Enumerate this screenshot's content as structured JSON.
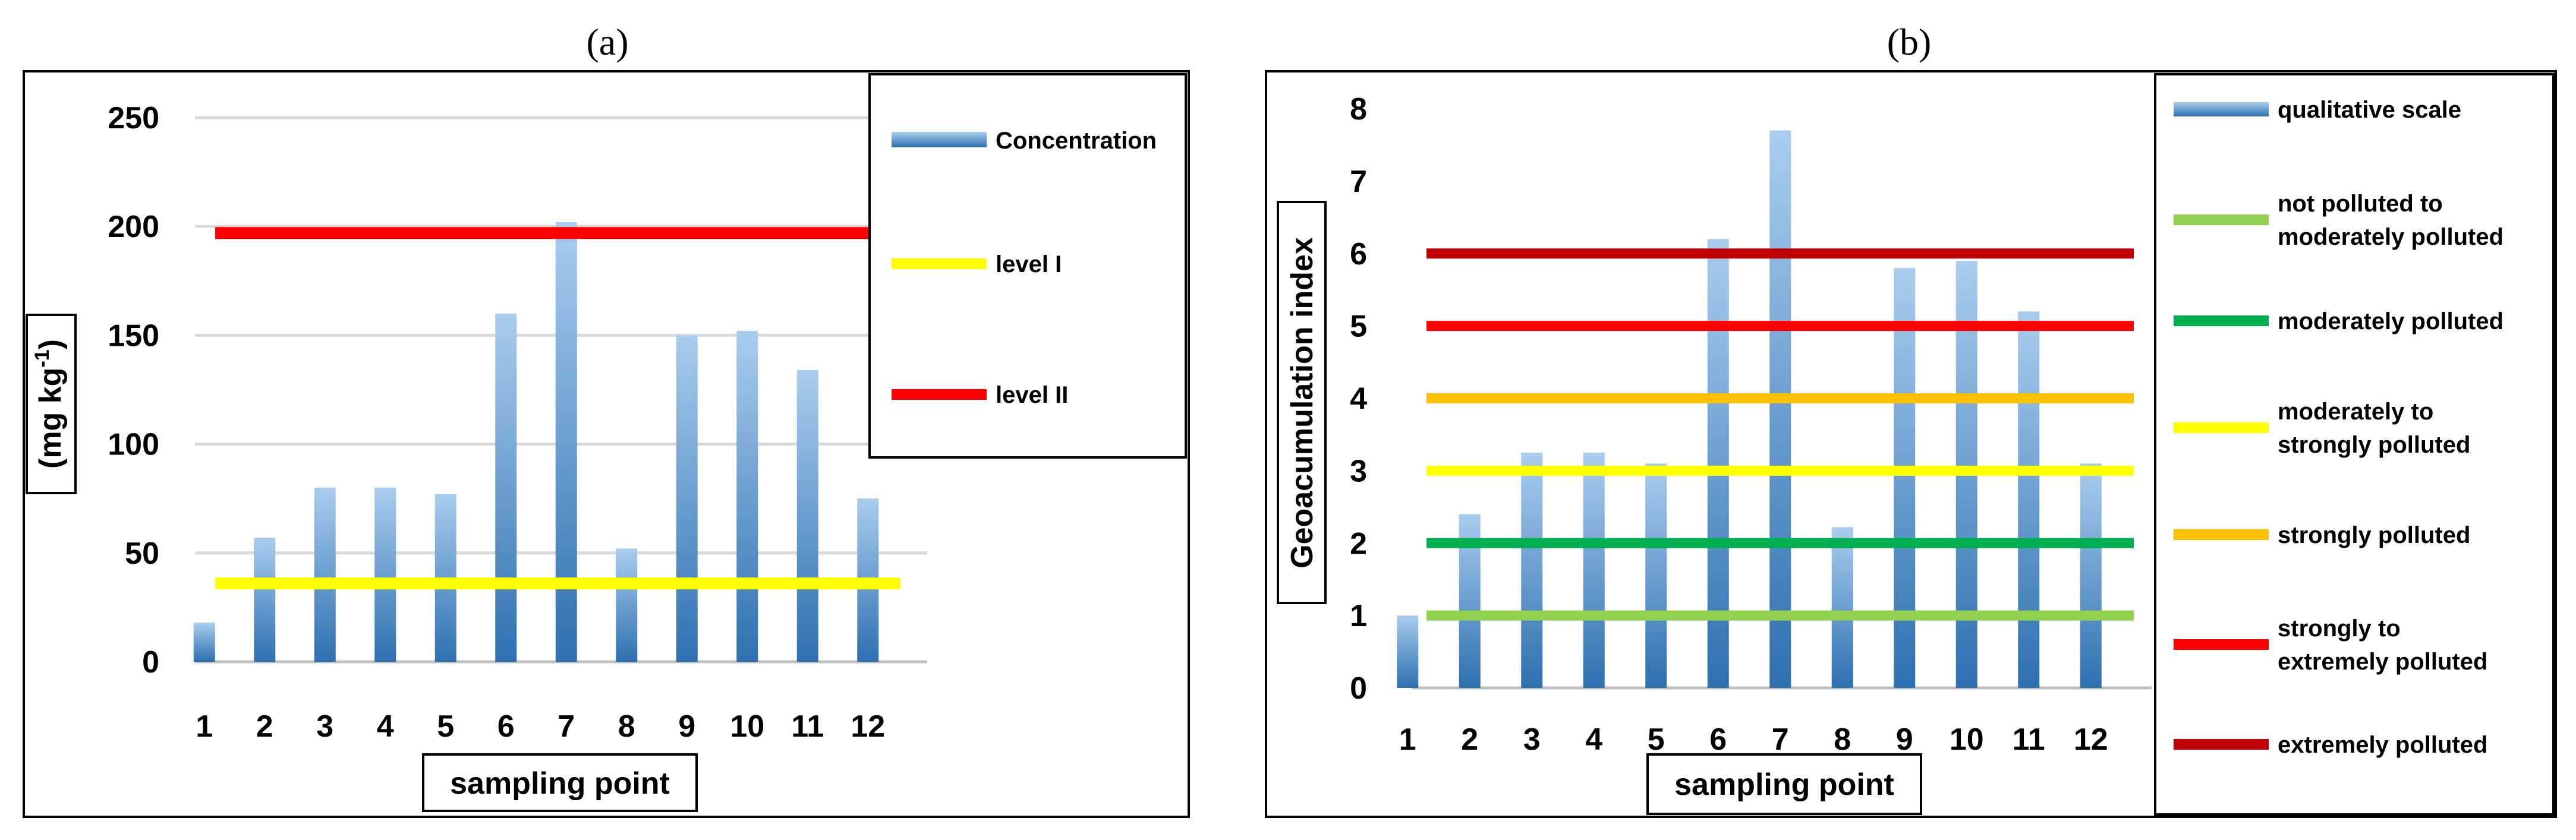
{
  "chart_data": [
    {
      "type": "bar",
      "panel_label": "(a)",
      "ylabel_main": "(mg kg",
      "ylabel_sup": "-1",
      "ylabel_end": ")",
      "xlabel": "sampling point",
      "categories": [
        "1",
        "2",
        "3",
        "4",
        "5",
        "6",
        "7",
        "8",
        "9",
        "10",
        "11",
        "12"
      ],
      "yticks": [
        "0",
        "50",
        "100",
        "150",
        "200",
        "250"
      ],
      "ylim": [
        0,
        250
      ],
      "series": [
        {
          "name": "Concentration",
          "values": [
            18,
            57,
            80,
            80,
            77,
            160,
            202,
            52,
            150,
            152,
            134,
            75
          ]
        }
      ],
      "reference_lines": [
        {
          "name": "level I",
          "value": 36,
          "color": "#ffff00"
        },
        {
          "name": "level II",
          "value": 197,
          "color": "#ff0000"
        }
      ],
      "legend_title": "Concentration"
    },
    {
      "type": "bar",
      "panel_label": "(b)",
      "ylabel": "Geoacumulation index",
      "xlabel": "sampling point",
      "categories": [
        "1",
        "2",
        "3",
        "4",
        "5",
        "6",
        "7",
        "8",
        "9",
        "10",
        "11",
        "12"
      ],
      "yticks": [
        "0",
        "1",
        "2",
        "3",
        "4",
        "5",
        "6",
        "7",
        "8"
      ],
      "ylim": [
        0,
        8
      ],
      "series": [
        {
          "name": "qualitative scale",
          "values": [
            1.0,
            2.4,
            3.25,
            3.25,
            3.1,
            6.2,
            7.7,
            2.22,
            5.8,
            5.9,
            5.2,
            3.1
          ]
        }
      ],
      "reference_lines": [
        {
          "name": "not polluted to moderately polluted",
          "lines": [
            "not polluted to",
            "moderately polluted"
          ],
          "value": 1,
          "color": "#92d050"
        },
        {
          "name": "moderately polluted",
          "lines": [
            "moderately polluted"
          ],
          "value": 2,
          "color": "#00b050"
        },
        {
          "name": "moderately to strongly polluted",
          "lines": [
            "moderately to",
            "strongly polluted"
          ],
          "value": 3,
          "color": "#ffff00"
        },
        {
          "name": "strongly polluted",
          "lines": [
            "strongly polluted"
          ],
          "value": 4,
          "color": "#ffc000"
        },
        {
          "name": "strongly to extremely polluted",
          "lines": [
            "strongly to",
            "extremely polluted"
          ],
          "value": 5,
          "color": "#ff0000"
        },
        {
          "name": "extremely polluted",
          "lines": [
            "extremely polluted"
          ],
          "value": 6,
          "color": "#c00000"
        }
      ],
      "legend_title": "qualitative scale"
    }
  ],
  "colors": {
    "bar_top": "#a9cdee",
    "bar_bottom": "#2e70b0",
    "grid": "#d9d9d9",
    "axis": "#bfbfbf",
    "frame": "#000000"
  }
}
